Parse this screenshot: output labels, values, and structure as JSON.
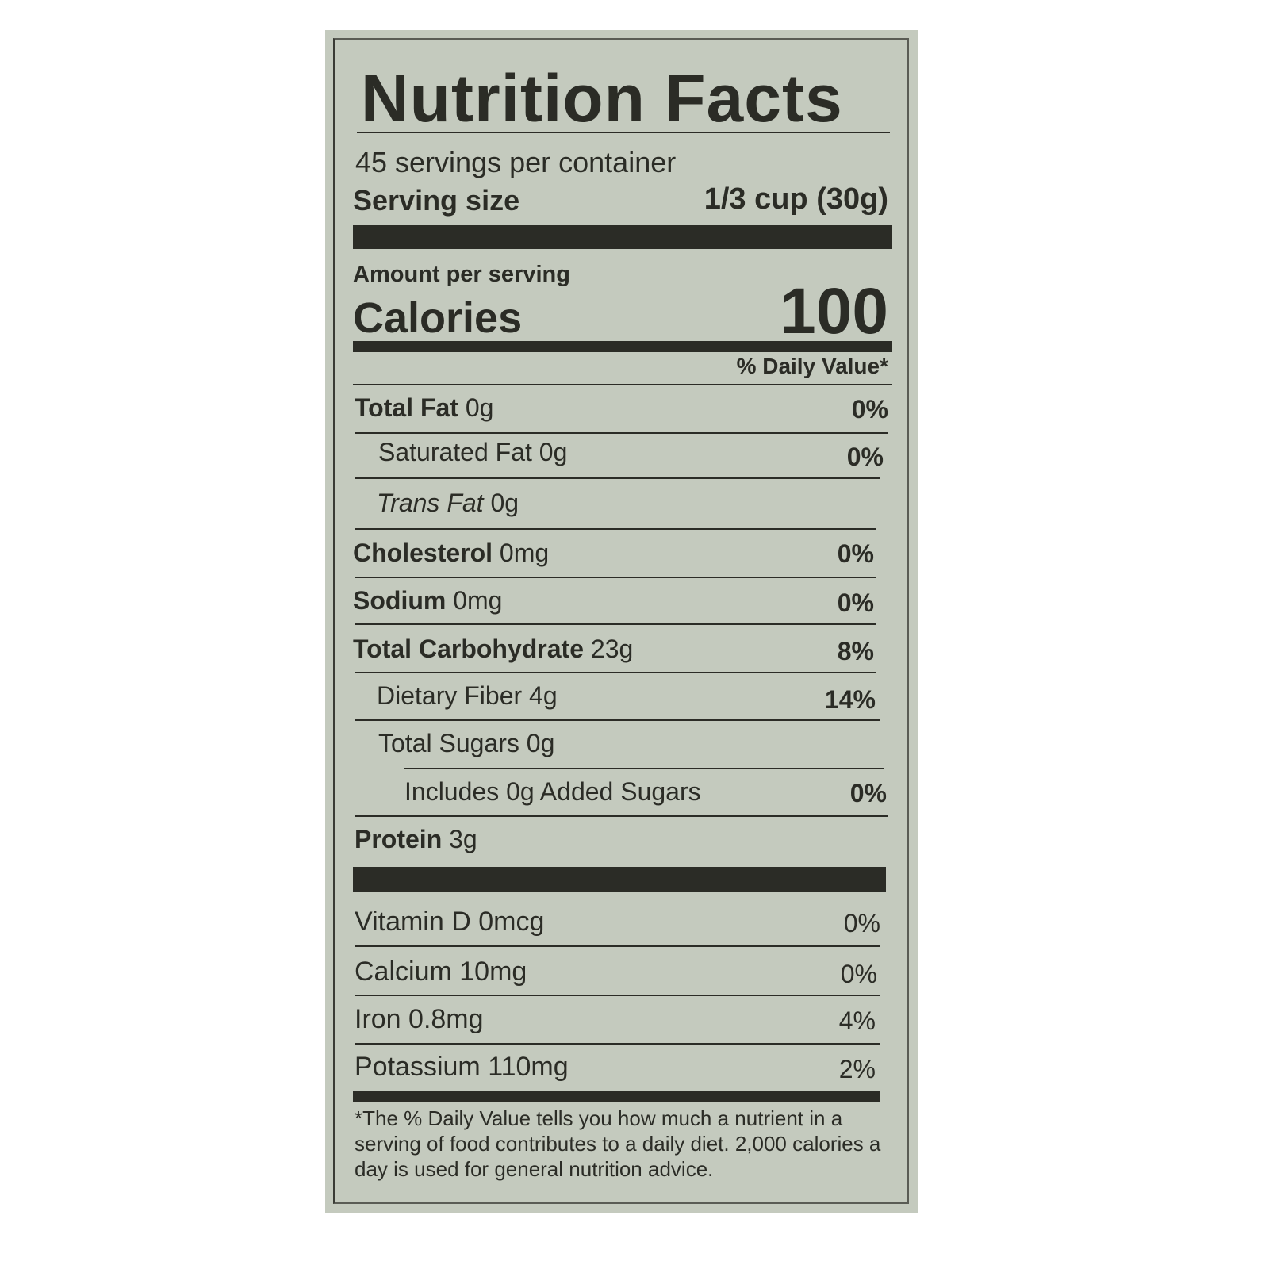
{
  "title": "Nutrition Facts",
  "servings_per_container": "45 servings per container",
  "serving_size": {
    "label": "Serving size",
    "value": "1/3 cup (30g)"
  },
  "amount_per_serving": "Amount per serving",
  "calories": {
    "label": "Calories",
    "value": "100"
  },
  "daily_value_header": "% Daily Value*",
  "nutrients": [
    {
      "name": "Total Fat",
      "amount": "0g",
      "dv": "0%"
    },
    {
      "name": "Saturated Fat",
      "amount": "0g",
      "dv": "0%"
    },
    {
      "name": "Trans Fat",
      "amount": "0g",
      "dv": ""
    },
    {
      "name": "Cholesterol",
      "amount": "0mg",
      "dv": "0%"
    },
    {
      "name": "Sodium",
      "amount": "0mg",
      "dv": "0%"
    },
    {
      "name": "Total Carbohydrate",
      "amount": "23g",
      "dv": "8%"
    },
    {
      "name": "Dietary Fiber",
      "amount": "4g",
      "dv": "14%"
    },
    {
      "name": "Total Sugars",
      "amount": "0g",
      "dv": ""
    },
    {
      "name": "Includes 0g Added Sugars",
      "amount": "",
      "dv": "0%"
    },
    {
      "name": "Protein",
      "amount": "3g",
      "dv": ""
    }
  ],
  "vitamins": [
    {
      "name": "Vitamin D",
      "amount": "0mcg",
      "dv": "0%"
    },
    {
      "name": "Calcium",
      "amount": "10mg",
      "dv": "0%"
    },
    {
      "name": "Iron",
      "amount": "0.8mg",
      "dv": "4%"
    },
    {
      "name": "Potassium",
      "amount": "110mg",
      "dv": "2%"
    }
  ],
  "footnote": "*The % Daily Value tells you how much a nutrient in a serving of food contributes to a daily diet. 2,000 calories a day is used for general nutrition advice.",
  "colors": {
    "background": "#c4cabe",
    "ink": "#2b2c26"
  }
}
